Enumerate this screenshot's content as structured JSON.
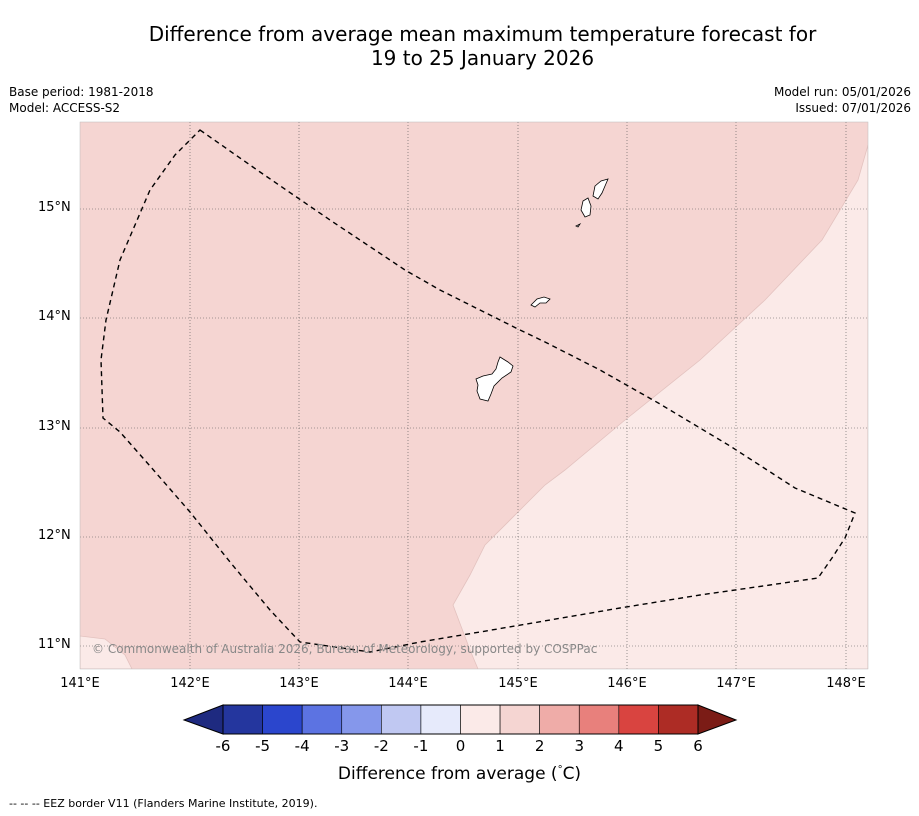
{
  "title": {
    "line1": "Difference from average mean maximum temperature forecast for",
    "line2": "19 to 25 January 2026"
  },
  "meta_left": {
    "base_period": "Base period: 1981-2018",
    "model": "Model: ACCESS-S2"
  },
  "meta_right": {
    "model_run": "Model run: 05/01/2026",
    "issued": "Issued: 07/01/2026"
  },
  "map": {
    "lat_labels": [
      "15°N",
      "14°N",
      "13°N",
      "12°N",
      "11°N"
    ],
    "lon_labels": [
      "141°E",
      "142°E",
      "143°E",
      "144°E",
      "145°E",
      "146°E",
      "147°E",
      "148°E"
    ],
    "copyright": "© Commonwealth of Australia 2026, Bureau of Meteorology, supported by COSPPac",
    "colors": {
      "anomaly_1_2": "#f5d5d2",
      "anomaly_0_1": "#fbeae8",
      "coast": "#000000",
      "grid": "#555555"
    }
  },
  "colorbar": {
    "ticks": [
      "-6",
      "-5",
      "-4",
      "-3",
      "-2",
      "-1",
      "0",
      "1",
      "2",
      "3",
      "4",
      "5",
      "6"
    ],
    "colors": [
      "#24369e",
      "#2b46cd",
      "#5c73e2",
      "#8597eb",
      "#c0c8f2",
      "#e6eafb",
      "#fbeae8",
      "#f5d5d2",
      "#efaca8",
      "#e8807c",
      "#d94440",
      "#ad2c25"
    ],
    "under_color": "#1e2a80",
    "over_color": "#7b1c16",
    "label": "Difference from average (",
    "label_unit": "C)",
    "label_degree": "°"
  },
  "footnote": "--  --  -- EEZ border V11 (Flanders Marine Institute, 2019)."
}
